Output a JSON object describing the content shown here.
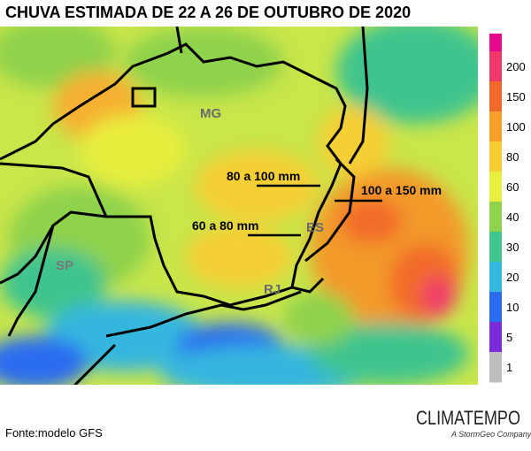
{
  "title": "CHUVA ESTIMADA DE 22 A 26 DE OUTUBRO DE 2020",
  "map": {
    "states": [
      "MG",
      "ES",
      "SP",
      "RJ"
    ],
    "annotations": [
      "80 a 100 mm",
      "60 a 80 mm",
      "100 a 150 mm"
    ]
  },
  "legend": [
    {
      "label": "200",
      "color": "#f0386c"
    },
    {
      "label": "150",
      "color": "#f26a2a"
    },
    {
      "label": "100",
      "color": "#f7a12a"
    },
    {
      "label": "80",
      "color": "#f6cf34"
    },
    {
      "label": "60",
      "color": "#e8ee3c"
    },
    {
      "label": "40",
      "color": "#8fd24c"
    },
    {
      "label": "30",
      "color": "#3fc48e"
    },
    {
      "label": "20",
      "color": "#35b6df"
    },
    {
      "label": "10",
      "color": "#2a6cf0"
    },
    {
      "label": "5",
      "color": "#7a2ad8"
    },
    {
      "label": "1",
      "color": "#bdbdbd"
    }
  ],
  "source": "Fonte:modelo GFS",
  "logo": {
    "name": "CLIMATEMPO",
    "tagline": "A StormGeo Company"
  }
}
